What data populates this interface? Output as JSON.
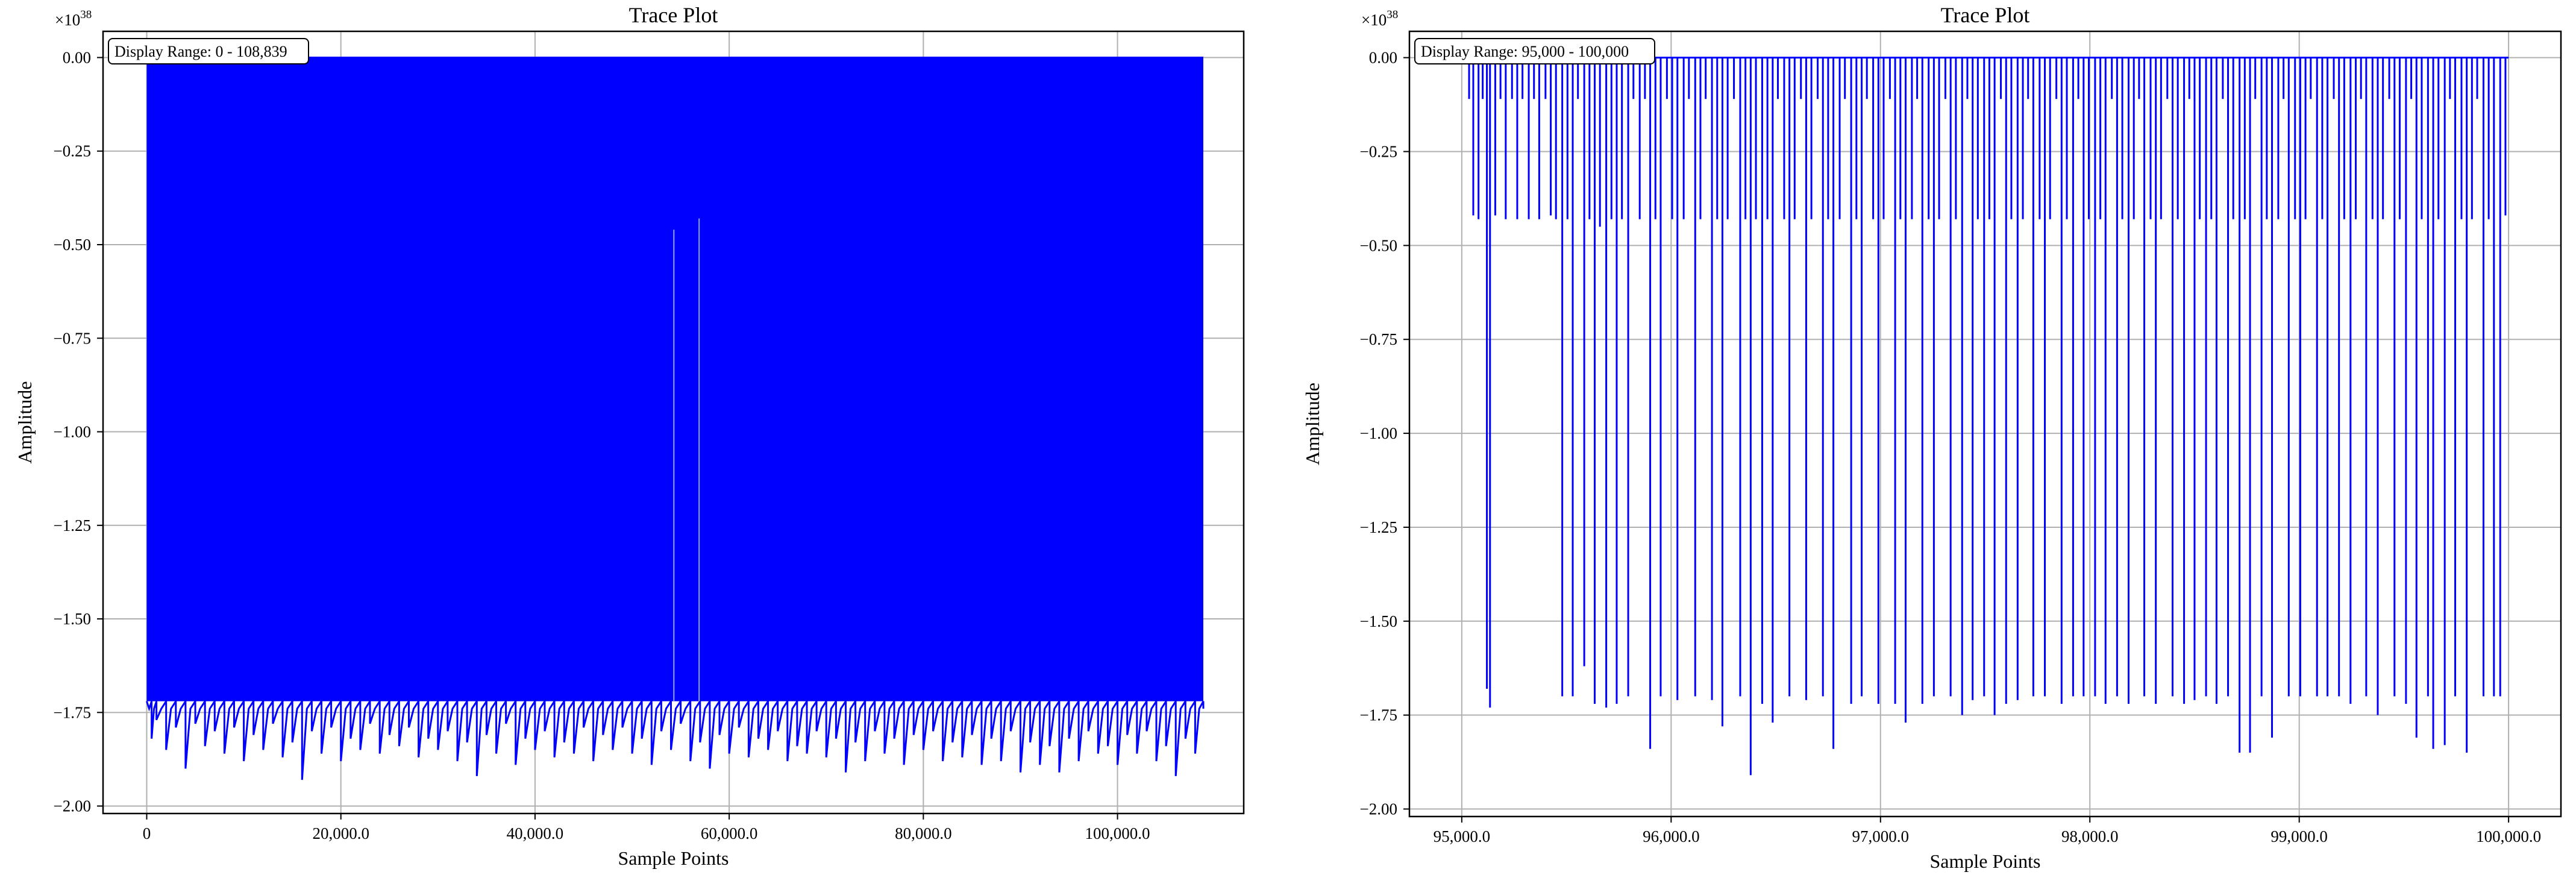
{
  "chart_data": [
    {
      "type": "line",
      "title": "Trace Plot",
      "xlabel": "Sample Points",
      "ylabel": "Amplitude",
      "y_multiplier_base": "×10",
      "y_multiplier_exp": "38",
      "annotation": "Display Range: 0 - 108,839",
      "xlim": [
        -4500,
        113000
      ],
      "ylim": [
        -2.02,
        0.07
      ],
      "x_ticks": [
        0,
        20000,
        40000,
        60000,
        80000,
        100000
      ],
      "x_tick_labels": [
        "0",
        "20,000.0",
        "40,000.0",
        "60,000.0",
        "80,000.0",
        "100,000.0"
      ],
      "y_ticks": [
        0.0,
        -0.25,
        -0.5,
        -0.75,
        -1.0,
        -1.25,
        -1.5,
        -1.75,
        -2.0
      ],
      "y_tick_labels": [
        "0.00",
        "−0.25",
        "−0.50",
        "−0.75",
        "−1.00",
        "−1.25",
        "−1.50",
        "−1.75",
        "−2.00"
      ],
      "grid": true,
      "series_color": "#0000ff",
      "x_range": [
        0,
        108839
      ],
      "baseline": 0.0,
      "dense_band_floor": -1.72,
      "envelope_min_x": [
        0,
        500,
        1000,
        2000,
        3000,
        4000,
        5000,
        6000,
        7000,
        8000,
        9000,
        10000,
        11000,
        12000,
        13000,
        14000,
        15000,
        16000,
        17000,
        18000,
        19000,
        20000,
        21000,
        22000,
        23000,
        24000,
        25000,
        26000,
        27000,
        28000,
        29000,
        30000,
        31000,
        32000,
        33000,
        34000,
        35000,
        36000,
        37000,
        38000,
        39000,
        40000,
        41000,
        42000,
        43000,
        44000,
        45000,
        46000,
        47000,
        48000,
        49000,
        50000,
        51000,
        52000,
        53000,
        54000,
        55000,
        56000,
        57000,
        58000,
        59000,
        60000,
        61000,
        62000,
        63000,
        64000,
        65000,
        66000,
        67000,
        68000,
        69000,
        70000,
        71000,
        72000,
        73000,
        74000,
        75000,
        76000,
        77000,
        78000,
        79000,
        80000,
        81000,
        82000,
        83000,
        84000,
        85000,
        86000,
        87000,
        88000,
        89000,
        90000,
        91000,
        92000,
        93000,
        94000,
        95000,
        96000,
        97000,
        98000,
        99000,
        100000,
        101000,
        102000,
        103000,
        104000,
        105000,
        106000,
        107000,
        108000,
        108839
      ],
      "envelope_min_y": [
        -1.72,
        -1.82,
        -1.77,
        -1.85,
        -1.79,
        -1.9,
        -1.78,
        -1.84,
        -1.8,
        -1.86,
        -1.79,
        -1.88,
        -1.81,
        -1.85,
        -1.78,
        -1.87,
        -1.83,
        -1.93,
        -1.8,
        -1.86,
        -1.79,
        -1.88,
        -1.82,
        -1.85,
        -1.78,
        -1.86,
        -1.81,
        -1.84,
        -1.79,
        -1.87,
        -1.82,
        -1.85,
        -1.8,
        -1.88,
        -1.83,
        -1.92,
        -1.81,
        -1.86,
        -1.78,
        -1.89,
        -1.82,
        -1.85,
        -1.8,
        -1.87,
        -1.83,
        -1.86,
        -1.79,
        -1.88,
        -1.81,
        -1.85,
        -1.79,
        -1.86,
        -1.82,
        -1.89,
        -1.8,
        -1.85,
        -1.78,
        -1.88,
        -1.83,
        -1.9,
        -1.81,
        -1.86,
        -1.79,
        -1.87,
        -1.82,
        -1.85,
        -1.8,
        -1.88,
        -1.84,
        -1.86,
        -1.8,
        -1.87,
        -1.82,
        -1.91,
        -1.83,
        -1.88,
        -1.8,
        -1.86,
        -1.82,
        -1.89,
        -1.81,
        -1.85,
        -1.8,
        -1.88,
        -1.83,
        -1.87,
        -1.81,
        -1.89,
        -1.82,
        -1.88,
        -1.8,
        -1.91,
        -1.83,
        -1.89,
        -1.84,
        -1.91,
        -1.82,
        -1.88,
        -1.8,
        -1.86,
        -1.84,
        -1.89,
        -1.81,
        -1.86,
        -1.8,
        -1.88,
        -1.84,
        -1.92,
        -1.82,
        -1.86,
        -1.72
      ],
      "partial_spikes": [
        {
          "x": 54300,
          "y": -0.46
        },
        {
          "x": 56900,
          "y": -0.43
        }
      ]
    },
    {
      "type": "line",
      "title": "Trace Plot",
      "xlabel": "Sample Points",
      "ylabel": "Amplitude",
      "y_multiplier_base": "×10",
      "y_multiplier_exp": "38",
      "annotation": "Display Range: 95,000 - 100,000",
      "xlim": [
        94750,
        100250
      ],
      "ylim": [
        -2.02,
        0.07
      ],
      "x_ticks": [
        95000,
        96000,
        97000,
        98000,
        99000,
        100000
      ],
      "x_tick_labels": [
        "95,000.0",
        "96,000.0",
        "97,000.0",
        "98,000.0",
        "99,000.0",
        "100,000.0"
      ],
      "y_ticks": [
        0.0,
        -0.25,
        -0.5,
        -0.75,
        -1.0,
        -1.25,
        -1.5,
        -1.75,
        -2.0
      ],
      "y_tick_labels": [
        "0.00",
        "−0.25",
        "−0.50",
        "−0.75",
        "−1.00",
        "−1.25",
        "−1.50",
        "−1.75",
        "−2.00"
      ],
      "grid": true,
      "series_color": "#0000ff",
      "x_range": [
        95000,
        100000
      ],
      "baseline": 0.0,
      "spikes": [
        {
          "x": 95035,
          "y": -0.11
        },
        {
          "x": 95055,
          "y": -0.42
        },
        {
          "x": 95080,
          "y": -0.43
        },
        {
          "x": 95100,
          "y": -0.11
        },
        {
          "x": 95120,
          "y": -1.68
        },
        {
          "x": 95135,
          "y": -1.73
        },
        {
          "x": 95160,
          "y": -0.42
        },
        {
          "x": 95185,
          "y": -0.11
        },
        {
          "x": 95210,
          "y": -0.43
        },
        {
          "x": 95240,
          "y": -0.11
        },
        {
          "x": 95265,
          "y": -0.43
        },
        {
          "x": 95290,
          "y": -0.11
        },
        {
          "x": 95320,
          "y": -0.43
        },
        {
          "x": 95345,
          "y": -0.11
        },
        {
          "x": 95370,
          "y": -0.43
        },
        {
          "x": 95400,
          "y": -0.11
        },
        {
          "x": 95425,
          "y": -0.42
        },
        {
          "x": 95450,
          "y": -0.43
        },
        {
          "x": 95480,
          "y": -1.7
        },
        {
          "x": 95505,
          "y": -0.43
        },
        {
          "x": 95530,
          "y": -1.7
        },
        {
          "x": 95555,
          "y": -0.11
        },
        {
          "x": 95585,
          "y": -1.62
        },
        {
          "x": 95610,
          "y": -0.43
        },
        {
          "x": 95635,
          "y": -1.72
        },
        {
          "x": 95660,
          "y": -0.45
        },
        {
          "x": 95690,
          "y": -1.73
        },
        {
          "x": 95715,
          "y": -0.43
        },
        {
          "x": 95740,
          "y": -1.72
        },
        {
          "x": 95765,
          "y": -0.43
        },
        {
          "x": 95795,
          "y": -1.7
        },
        {
          "x": 95820,
          "y": -0.11
        },
        {
          "x": 95850,
          "y": -0.43
        },
        {
          "x": 95875,
          "y": -0.11
        },
        {
          "x": 95900,
          "y": -1.84
        },
        {
          "x": 95925,
          "y": -0.43
        },
        {
          "x": 95950,
          "y": -1.7
        },
        {
          "x": 95980,
          "y": -0.11
        },
        {
          "x": 96005,
          "y": -0.43
        },
        {
          "x": 96030,
          "y": -1.71
        },
        {
          "x": 96060,
          "y": -0.43
        },
        {
          "x": 96085,
          "y": -0.11
        },
        {
          "x": 96115,
          "y": -1.7
        },
        {
          "x": 96140,
          "y": -0.43
        },
        {
          "x": 96165,
          "y": -0.11
        },
        {
          "x": 96195,
          "y": -1.71
        },
        {
          "x": 96220,
          "y": -0.43
        },
        {
          "x": 96245,
          "y": -1.78
        },
        {
          "x": 96270,
          "y": -0.43
        },
        {
          "x": 96300,
          "y": -0.11
        },
        {
          "x": 96330,
          "y": -1.7
        },
        {
          "x": 96355,
          "y": -0.43
        },
        {
          "x": 96380,
          "y": -1.91
        },
        {
          "x": 96405,
          "y": -0.43
        },
        {
          "x": 96435,
          "y": -1.72
        },
        {
          "x": 96460,
          "y": -0.43
        },
        {
          "x": 96485,
          "y": -1.77
        },
        {
          "x": 96510,
          "y": -0.11
        },
        {
          "x": 96540,
          "y": -0.43
        },
        {
          "x": 96565,
          "y": -1.7
        },
        {
          "x": 96590,
          "y": -0.43
        },
        {
          "x": 96620,
          "y": -0.11
        },
        {
          "x": 96645,
          "y": -1.71
        },
        {
          "x": 96670,
          "y": -0.43
        },
        {
          "x": 96700,
          "y": -0.11
        },
        {
          "x": 96725,
          "y": -1.7
        },
        {
          "x": 96750,
          "y": -0.43
        },
        {
          "x": 96775,
          "y": -1.84
        },
        {
          "x": 96805,
          "y": -0.43
        },
        {
          "x": 96830,
          "y": -0.11
        },
        {
          "x": 96860,
          "y": -1.72
        },
        {
          "x": 96885,
          "y": -0.43
        },
        {
          "x": 96910,
          "y": -1.7
        },
        {
          "x": 96935,
          "y": -0.11
        },
        {
          "x": 96965,
          "y": -0.43
        },
        {
          "x": 96990,
          "y": -1.72
        },
        {
          "x": 97015,
          "y": -0.43
        },
        {
          "x": 97045,
          "y": -0.11
        },
        {
          "x": 97070,
          "y": -1.72
        },
        {
          "x": 97095,
          "y": -0.43
        },
        {
          "x": 97120,
          "y": -1.77
        },
        {
          "x": 97150,
          "y": -0.43
        },
        {
          "x": 97175,
          "y": -0.11
        },
        {
          "x": 97200,
          "y": -1.72
        },
        {
          "x": 97230,
          "y": -0.43
        },
        {
          "x": 97255,
          "y": -1.7
        },
        {
          "x": 97280,
          "y": -0.43
        },
        {
          "x": 97310,
          "y": -0.11
        },
        {
          "x": 97335,
          "y": -1.7
        },
        {
          "x": 97360,
          "y": -0.43
        },
        {
          "x": 97390,
          "y": -1.75
        },
        {
          "x": 97415,
          "y": -0.11
        },
        {
          "x": 97440,
          "y": -1.71
        },
        {
          "x": 97465,
          "y": -0.43
        },
        {
          "x": 97495,
          "y": -1.7
        },
        {
          "x": 97520,
          "y": -0.43
        },
        {
          "x": 97545,
          "y": -1.75
        },
        {
          "x": 97575,
          "y": -0.11
        },
        {
          "x": 97600,
          "y": -1.72
        },
        {
          "x": 97625,
          "y": -0.43
        },
        {
          "x": 97655,
          "y": -1.71
        },
        {
          "x": 97680,
          "y": -0.43
        },
        {
          "x": 97705,
          "y": -0.11
        },
        {
          "x": 97730,
          "y": -1.7
        },
        {
          "x": 97760,
          "y": -0.43
        },
        {
          "x": 97785,
          "y": -1.7
        },
        {
          "x": 97810,
          "y": -0.43
        },
        {
          "x": 97840,
          "y": -0.11
        },
        {
          "x": 97865,
          "y": -1.72
        },
        {
          "x": 97890,
          "y": -0.43
        },
        {
          "x": 97920,
          "y": -1.7
        },
        {
          "x": 97945,
          "y": -0.11
        },
        {
          "x": 97970,
          "y": -1.7
        },
        {
          "x": 97995,
          "y": -0.43
        },
        {
          "x": 98025,
          "y": -1.7
        },
        {
          "x": 98050,
          "y": -0.43
        },
        {
          "x": 98075,
          "y": -1.72
        },
        {
          "x": 98105,
          "y": -0.11
        },
        {
          "x": 98130,
          "y": -1.7
        },
        {
          "x": 98155,
          "y": -0.43
        },
        {
          "x": 98185,
          "y": -1.72
        },
        {
          "x": 98210,
          "y": -0.43
        },
        {
          "x": 98235,
          "y": -0.11
        },
        {
          "x": 98260,
          "y": -1.7
        },
        {
          "x": 98290,
          "y": -0.43
        },
        {
          "x": 98315,
          "y": -1.72
        },
        {
          "x": 98340,
          "y": -0.43
        },
        {
          "x": 98370,
          "y": -0.11
        },
        {
          "x": 98395,
          "y": -1.7
        },
        {
          "x": 98420,
          "y": -0.43
        },
        {
          "x": 98450,
          "y": -1.72
        },
        {
          "x": 98475,
          "y": -0.11
        },
        {
          "x": 98500,
          "y": -1.71
        },
        {
          "x": 98525,
          "y": -0.43
        },
        {
          "x": 98555,
          "y": -1.7
        },
        {
          "x": 98580,
          "y": -0.43
        },
        {
          "x": 98605,
          "y": -1.72
        },
        {
          "x": 98635,
          "y": -0.11
        },
        {
          "x": 98660,
          "y": -1.7
        },
        {
          "x": 98685,
          "y": -0.43
        },
        {
          "x": 98715,
          "y": -1.85
        },
        {
          "x": 98740,
          "y": -0.43
        },
        {
          "x": 98765,
          "y": -1.85
        },
        {
          "x": 98790,
          "y": -0.11
        },
        {
          "x": 98820,
          "y": -1.7
        },
        {
          "x": 98845,
          "y": -0.43
        },
        {
          "x": 98870,
          "y": -1.81
        },
        {
          "x": 98900,
          "y": -0.43
        },
        {
          "x": 98925,
          "y": -0.11
        },
        {
          "x": 98950,
          "y": -1.7
        },
        {
          "x": 98980,
          "y": -0.43
        },
        {
          "x": 99005,
          "y": -1.7
        },
        {
          "x": 99030,
          "y": -0.43
        },
        {
          "x": 99055,
          "y": -0.11
        },
        {
          "x": 99085,
          "y": -1.7
        },
        {
          "x": 99110,
          "y": -0.43
        },
        {
          "x": 99135,
          "y": -1.7
        },
        {
          "x": 99165,
          "y": -0.11
        },
        {
          "x": 99190,
          "y": -1.7
        },
        {
          "x": 99215,
          "y": -0.43
        },
        {
          "x": 99245,
          "y": -1.72
        },
        {
          "x": 99270,
          "y": -0.43
        },
        {
          "x": 99295,
          "y": -0.11
        },
        {
          "x": 99320,
          "y": -1.7
        },
        {
          "x": 99350,
          "y": -0.43
        },
        {
          "x": 99375,
          "y": -1.75
        },
        {
          "x": 99400,
          "y": -0.43
        },
        {
          "x": 99430,
          "y": -0.11
        },
        {
          "x": 99455,
          "y": -1.7
        },
        {
          "x": 99480,
          "y": -0.43
        },
        {
          "x": 99510,
          "y": -1.72
        },
        {
          "x": 99535,
          "y": -0.11
        },
        {
          "x": 99560,
          "y": -1.81
        },
        {
          "x": 99585,
          "y": -0.43
        },
        {
          "x": 99615,
          "y": -1.7
        },
        {
          "x": 99640,
          "y": -1.84
        },
        {
          "x": 99665,
          "y": -0.43
        },
        {
          "x": 99695,
          "y": -1.83
        },
        {
          "x": 99720,
          "y": -0.11
        },
        {
          "x": 99745,
          "y": -1.7
        },
        {
          "x": 99775,
          "y": -0.43
        },
        {
          "x": 99800,
          "y": -1.85
        },
        {
          "x": 99825,
          "y": -0.43
        },
        {
          "x": 99850,
          "y": -0.11
        },
        {
          "x": 99880,
          "y": -1.7
        },
        {
          "x": 99905,
          "y": -0.43
        },
        {
          "x": 99930,
          "y": -1.7
        },
        {
          "x": 99960,
          "y": -1.7
        },
        {
          "x": 99985,
          "y": -0.42
        }
      ]
    }
  ]
}
